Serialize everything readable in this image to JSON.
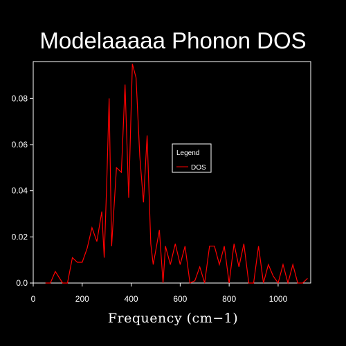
{
  "chart_data": {
    "type": "line",
    "title": "Modelaaaaa Phonon DOS",
    "xlabel": "Frequency (cm−1)",
    "ylabel": "",
    "xlim": [
      0,
      1133
    ],
    "ylim": [
      0,
      0.096
    ],
    "xticks": [
      0,
      200,
      400,
      600,
      800,
      1000
    ],
    "xtick_labels": [
      "0",
      "200",
      "400",
      "600",
      "800",
      "1000"
    ],
    "yticks": [
      0,
      0.02,
      0.04,
      0.06,
      0.08
    ],
    "ytick_labels": [
      "0.0",
      "0.02",
      "0.04",
      "0.06",
      "0.08"
    ],
    "grid": false,
    "legend": {
      "title": "Legend",
      "position": "center-right",
      "entries": [
        {
          "label": "DOS",
          "color": "#ff0000"
        }
      ]
    },
    "series": [
      {
        "name": "DOS",
        "color": "#ff0000",
        "x": [
          50,
          70,
          90,
          120,
          140,
          160,
          180,
          200,
          220,
          240,
          260,
          280,
          290,
          300,
          310,
          320,
          340,
          360,
          375,
          390,
          405,
          420,
          435,
          450,
          465,
          480,
          490,
          500,
          515,
          530,
          540,
          560,
          580,
          600,
          620,
          640,
          660,
          680,
          700,
          720,
          740,
          760,
          780,
          800,
          820,
          840,
          860,
          880,
          900,
          920,
          940,
          960,
          980,
          1000,
          1020,
          1040,
          1060,
          1080,
          1100,
          1120
        ],
        "y": [
          0,
          0,
          0.005,
          0,
          0,
          0.011,
          0.009,
          0.009,
          0.015,
          0.024,
          0.018,
          0.031,
          0.011,
          0.043,
          0.08,
          0.016,
          0.05,
          0.048,
          0.086,
          0.037,
          0.095,
          0.089,
          0.055,
          0.035,
          0.064,
          0.017,
          0.008,
          0.014,
          0.023,
          0,
          0.016,
          0.008,
          0.017,
          0.008,
          0.016,
          0,
          0.001,
          0.007,
          0,
          0.016,
          0.016,
          0.008,
          0.016,
          0,
          0.017,
          0.007,
          0.017,
          0,
          0,
          0.016,
          0,
          0.008,
          0.003,
          0,
          0.008,
          0,
          0.008,
          0,
          0,
          0.002
        ]
      }
    ]
  }
}
